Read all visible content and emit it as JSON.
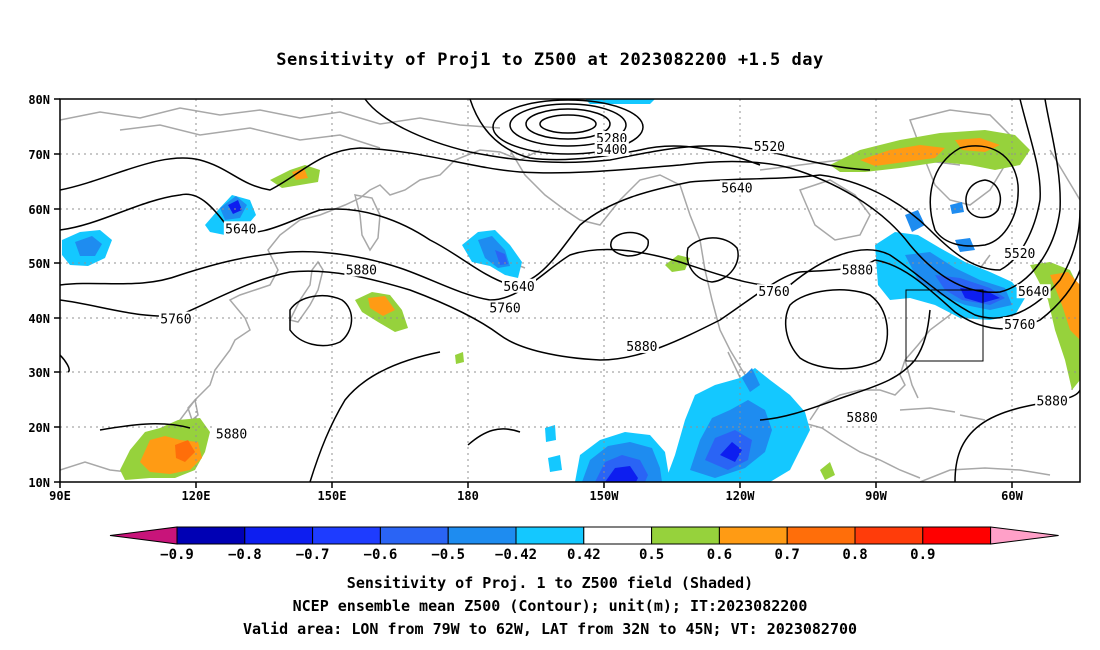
{
  "title": "Sensitivity of Proj1 to Z500 at 2023082200 +1.5 day",
  "lat_ticks": [
    "80N",
    "70N",
    "60N",
    "50N",
    "40N",
    "30N",
    "20N",
    "10N"
  ],
  "lon_ticks": [
    "90E",
    "120E",
    "150E",
    "180",
    "150W",
    "120W",
    "90W",
    "60W"
  ],
  "contour_labels": [
    {
      "text": "5280",
      "lon": -151,
      "lat": 72.5
    },
    {
      "text": "5400",
      "lon": -151,
      "lat": 70.5
    },
    {
      "text": "5520",
      "lon": -117,
      "lat": 71
    },
    {
      "text": "5640",
      "lon": -124,
      "lat": 63.5
    },
    {
      "text": "5640",
      "lon": 129,
      "lat": 56
    },
    {
      "text": "5880",
      "lon": 155,
      "lat": 48.5
    },
    {
      "text": "5760",
      "lon": 115,
      "lat": 39.5
    },
    {
      "text": "5640",
      "lon": -171,
      "lat": 45.5
    },
    {
      "text": "5760",
      "lon": -174,
      "lat": 41.5
    },
    {
      "text": "5880",
      "lon": -144.5,
      "lat": 34.5
    },
    {
      "text": "5760",
      "lon": -116,
      "lat": 44.5
    },
    {
      "text": "5880",
      "lon": -98,
      "lat": 48.5
    },
    {
      "text": "5520",
      "lon": -63,
      "lat": 51.5
    },
    {
      "text": "5640",
      "lon": -60,
      "lat": 44.5
    },
    {
      "text": "5760",
      "lon": -63,
      "lat": 38.5
    },
    {
      "text": "5880",
      "lon": -56,
      "lat": 24.5
    },
    {
      "text": "5880",
      "lon": -97,
      "lat": 21.5
    },
    {
      "text": "5880",
      "lon": 127,
      "lat": 18.5
    }
  ],
  "colorbar": {
    "labels": [
      "−0.9",
      "−0.8",
      "−0.7",
      "−0.6",
      "−0.5",
      "−0.42",
      "0.42",
      "0.5",
      "0.6",
      "0.7",
      "0.8",
      "0.9"
    ],
    "colors": [
      "#0000b4",
      "#0d1ef0",
      "#1e3cff",
      "#2a64f5",
      "#1e8cf0",
      "#14c8ff",
      "#ffffff",
      "#96d23c",
      "#ff9b14",
      "#ff6e0a",
      "#ff3c0a",
      "#ff0000"
    ],
    "left_arrow_color": "#c8147a",
    "right_arrow_color": "#ffa0c8"
  },
  "valid_area": {
    "lon_min": -79,
    "lon_max": -62,
    "lat_min": 32,
    "lat_max": 45
  },
  "captions": {
    "line1": "Sensitivity of Proj. 1 to Z500 field (Shaded)",
    "line2": "NCEP ensemble mean Z500 (Contour); unit(m); IT:2023082200",
    "line3": "Valid area: LON from 79W to 62W, LAT from 32N to 45N; VT: 2023082700"
  }
}
